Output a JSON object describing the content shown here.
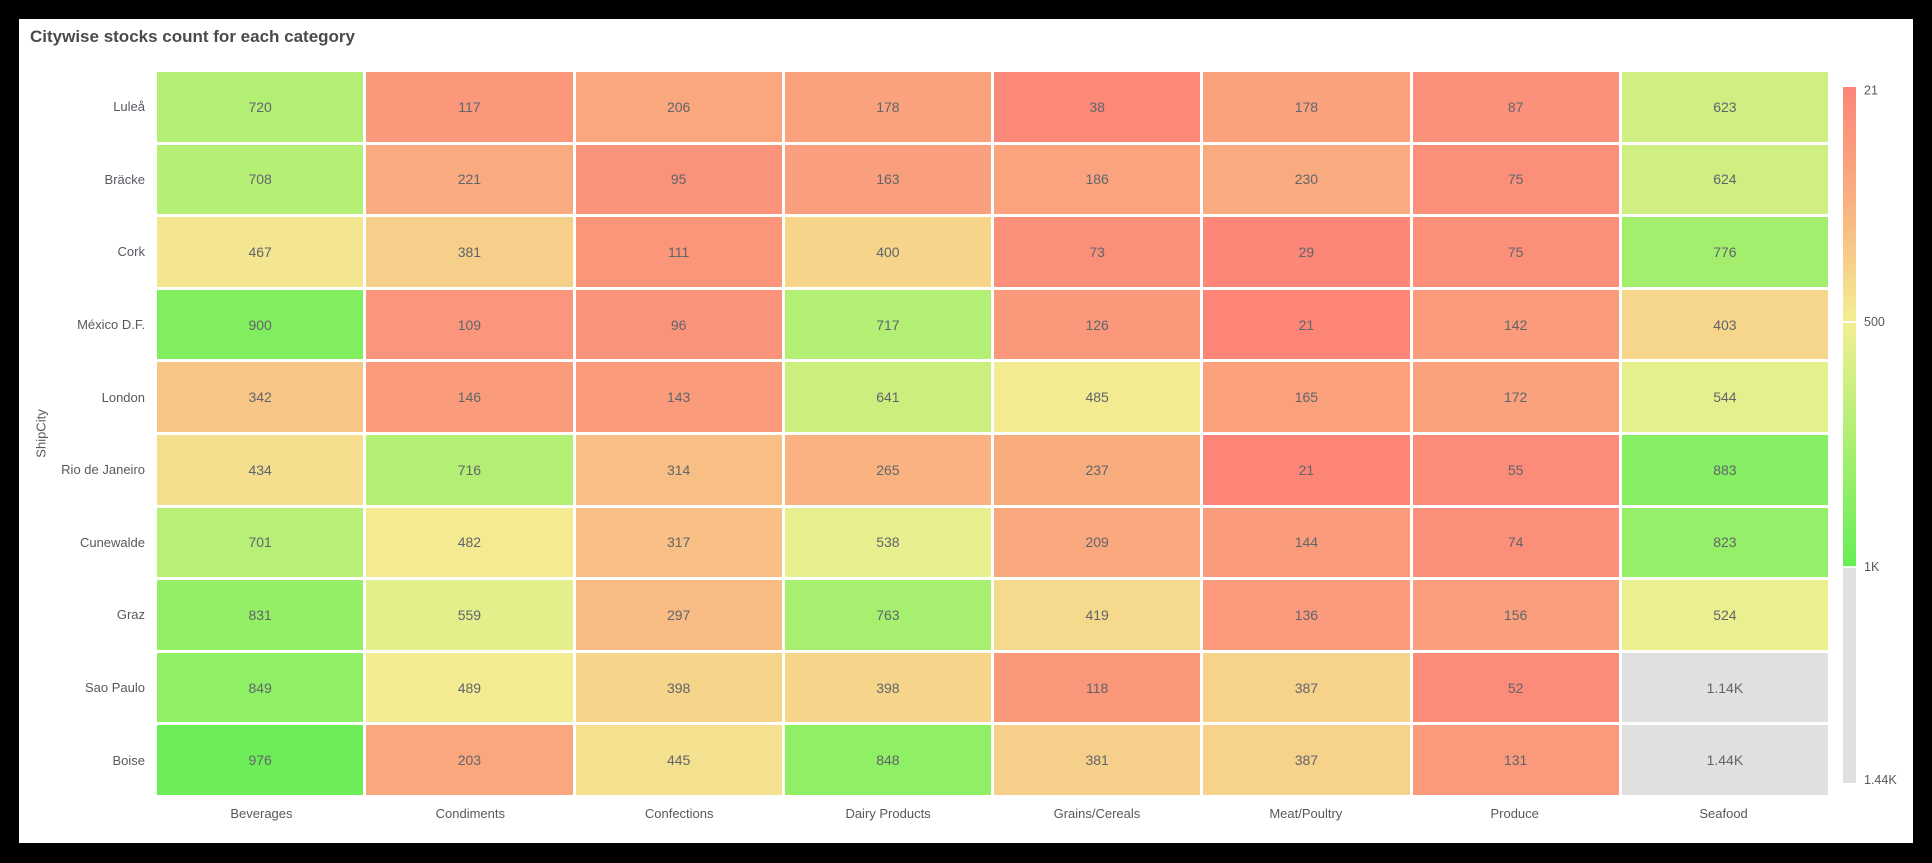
{
  "title": "Citywise stocks count for each category",
  "y_axis_title": "ShipCity",
  "colors": {
    "page_background": "#000000",
    "card_background": "#ffffff",
    "cell_gap": "#ffffff",
    "title_text": "#4a4a4a",
    "axis_label_text": "#55595e",
    "cell_value_text": "#60656a",
    "overflow_gray": "#e0e0e0"
  },
  "chart_data": {
    "type": "heatmap",
    "title": "Citywise stocks count for each category",
    "ylabel": "ShipCity",
    "categories": [
      "Beverages",
      "Condiments",
      "Confections",
      "Dairy Products",
      "Grains/Cereals",
      "Meat/Poultry",
      "Produce",
      "Seafood"
    ],
    "rows": [
      "Luleå",
      "Bräcke",
      "Cork",
      "México D.F.",
      "London",
      "Rio de Janeiro",
      "Cunewalde",
      "Graz",
      "Sao Paulo",
      "Boise"
    ],
    "values": [
      [
        720,
        117,
        206,
        178,
        38,
        178,
        87,
        623
      ],
      [
        708,
        221,
        95,
        163,
        186,
        230,
        75,
        624
      ],
      [
        467,
        381,
        111,
        400,
        73,
        29,
        75,
        776
      ],
      [
        900,
        109,
        96,
        717,
        126,
        21,
        142,
        403
      ],
      [
        342,
        146,
        143,
        641,
        485,
        165,
        172,
        544
      ],
      [
        434,
        716,
        314,
        265,
        237,
        21,
        55,
        883
      ],
      [
        701,
        482,
        317,
        538,
        209,
        144,
        74,
        823
      ],
      [
        831,
        559,
        297,
        763,
        419,
        136,
        156,
        524
      ],
      [
        849,
        489,
        398,
        398,
        118,
        387,
        52,
        1140
      ],
      [
        976,
        203,
        445,
        848,
        381,
        387,
        131,
        1440
      ]
    ],
    "value_display_note": "values >= 1000 shown abbreviated",
    "displayed_overflow_labels": [
      "1.14K",
      "1.44K"
    ],
    "legend": {
      "position": "right",
      "min": 21,
      "max": 1440,
      "gray_above": 1000,
      "ticks": [
        {
          "value": 21,
          "label": "21"
        },
        {
          "value": 500,
          "label": "500"
        },
        {
          "value": 1000,
          "label": "1K"
        },
        {
          "value": 1440,
          "label": "1.44K"
        }
      ]
    },
    "color_scale": [
      {
        "value": 21,
        "color": "#fc8578"
      },
      {
        "value": 260,
        "color": "#f9b180"
      },
      {
        "value": 500,
        "color": "#f3ef93"
      },
      {
        "value": 750,
        "color": "#aaef70"
      },
      {
        "value": 1000,
        "color": "#66ee55"
      }
    ],
    "overflow_color": "#e0e0e0"
  }
}
